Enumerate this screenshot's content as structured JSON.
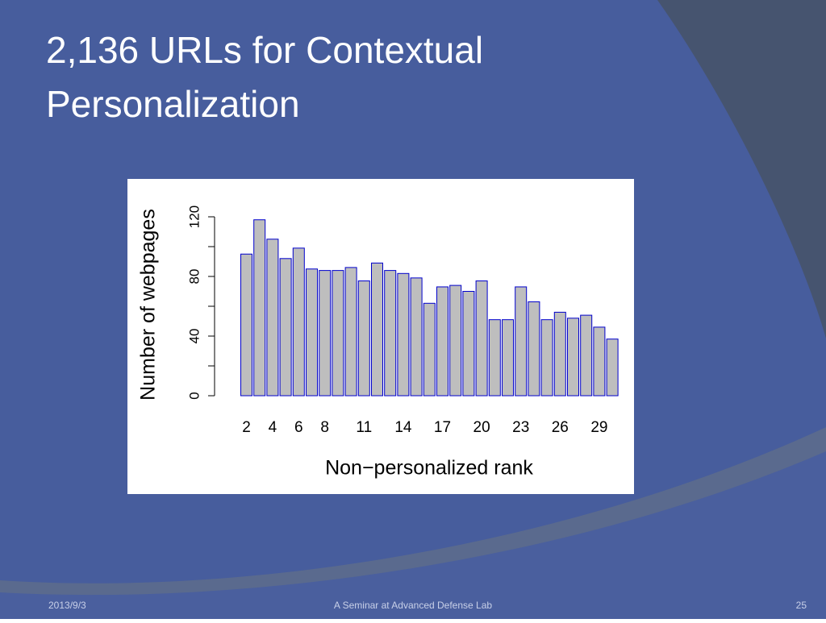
{
  "slide": {
    "title_lines": [
      "2,136 URLs for Contextual",
      "Personalization"
    ],
    "footer_date": "2013/9/3",
    "footer_text": "A Seminar at Advanced Defense Lab",
    "page_number": "25"
  },
  "chart_data": {
    "type": "bar",
    "xlabel": "Non−personalized rank",
    "ylabel": "Number of webpages",
    "categories": [
      "2",
      null,
      "4",
      null,
      "6",
      null,
      "8",
      null,
      null,
      "11",
      null,
      null,
      "14",
      null,
      null,
      "17",
      null,
      null,
      "20",
      null,
      null,
      "23",
      null,
      null,
      "26",
      null,
      null,
      "29",
      null
    ],
    "values": [
      95,
      118,
      105,
      92,
      99,
      85,
      84,
      84,
      86,
      77,
      89,
      84,
      82,
      79,
      62,
      73,
      74,
      70,
      77,
      51,
      51,
      73,
      63,
      51,
      56,
      52,
      54,
      46,
      38
    ],
    "color": "#bebebe",
    "edge_color": "#0000cc",
    "ylim": [
      0,
      120
    ],
    "yticks": [
      0,
      40,
      80,
      120
    ],
    "yticks_minor": [
      20,
      60,
      100
    ]
  }
}
